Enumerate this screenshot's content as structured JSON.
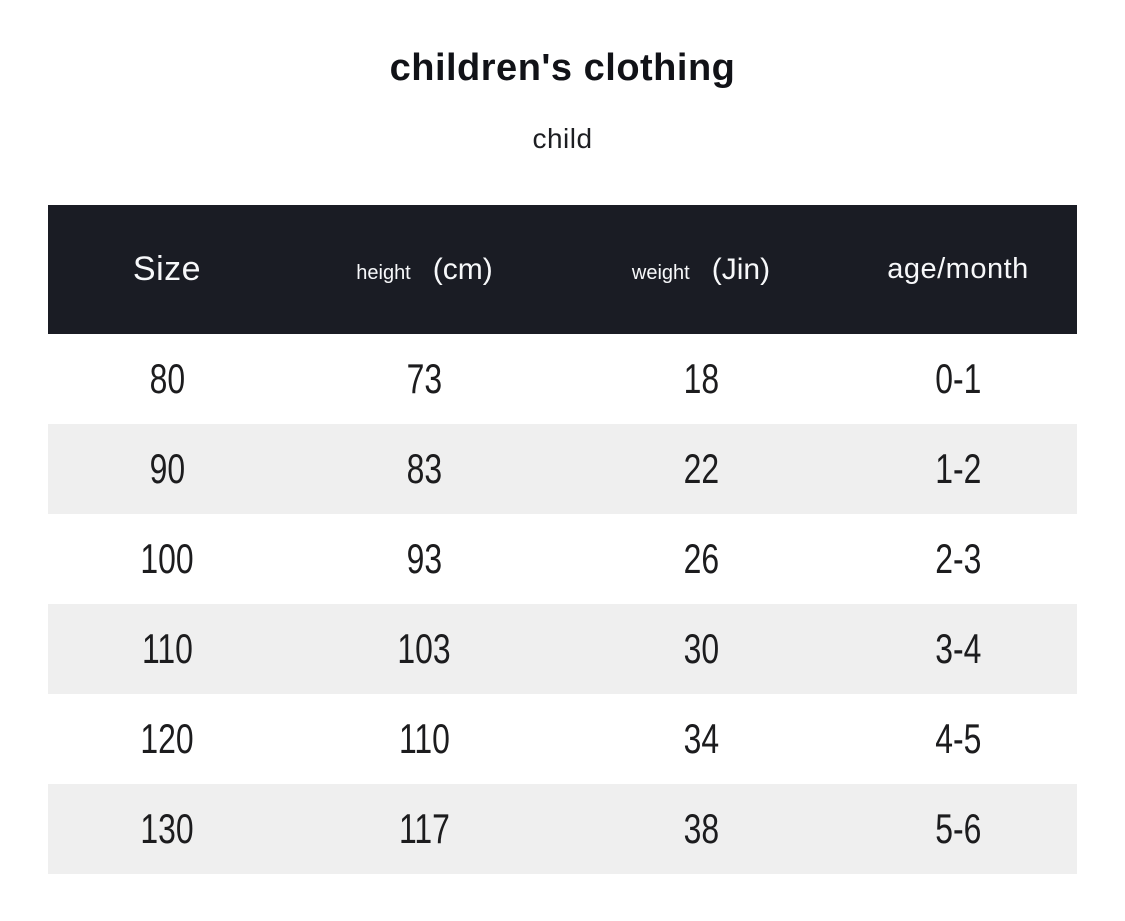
{
  "chart_data": {
    "type": "table",
    "title": "children's clothing",
    "subtitle": "child",
    "columns": [
      {
        "label": "Size",
        "unit": ""
      },
      {
        "label": "height",
        "unit": "(cm)"
      },
      {
        "label": "weight",
        "unit": "(Jin)"
      },
      {
        "label": "age/month",
        "unit": ""
      }
    ],
    "rows": [
      [
        "80",
        "73",
        "18",
        "0-1"
      ],
      [
        "90",
        "83",
        "22",
        "1-2"
      ],
      [
        "100",
        "93",
        "26",
        "2-3"
      ],
      [
        "110",
        "103",
        "30",
        "3-4"
      ],
      [
        "120",
        "110",
        "34",
        "4-5"
      ],
      [
        "130",
        "117",
        "38",
        "5-6"
      ]
    ],
    "layout": {
      "legend": "none",
      "grid": "off",
      "row_striping": "alternating"
    }
  },
  "colors": {
    "header_bg": "#1a1c24",
    "header_text": "#f7f8fa",
    "row_bg": "#ffffff",
    "row_alt_bg": "#efefef",
    "body_text": "#1c1c1e",
    "page_bg": "#ffffff"
  }
}
